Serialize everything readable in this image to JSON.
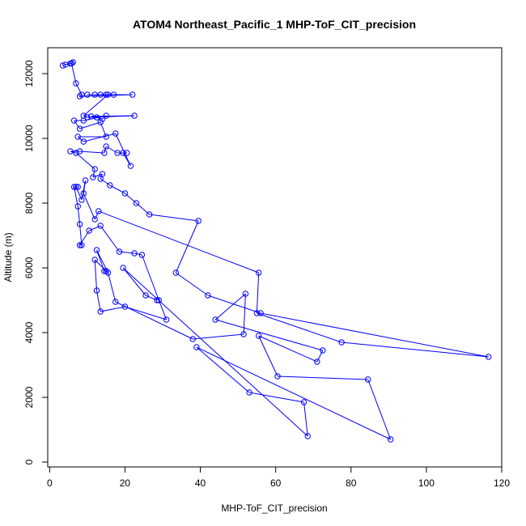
{
  "chart_data": {
    "type": "scatter",
    "title": "ATOM4 Northeast_Pacific_1 MHP-ToF_CIT_precision",
    "xlabel": "MHP-ToF_CIT_precision",
    "ylabel": "Altitude (m)",
    "xlim": [
      -0.5,
      120
    ],
    "ylim": [
      -150,
      12800
    ],
    "x_ticks": [
      0,
      20,
      40,
      60,
      80,
      100,
      120
    ],
    "y_ticks": [
      0,
      2000,
      4000,
      6000,
      8000,
      10000,
      12000
    ],
    "color": "#0000ff",
    "connected": true,
    "series": [
      {
        "points": [
          [
            3.5,
            12250
          ],
          [
            4.2,
            12280
          ],
          [
            5.5,
            12310
          ],
          [
            6.2,
            12350
          ],
          [
            5.8,
            12320
          ],
          [
            7.0,
            11700
          ],
          [
            8.5,
            11350
          ],
          [
            8.0,
            11300
          ],
          [
            22.0,
            11350
          ],
          [
            10.0,
            11350
          ],
          [
            12.0,
            11350
          ],
          [
            15.0,
            11350
          ],
          [
            17.0,
            11350
          ],
          [
            13.5,
            11350
          ],
          [
            15.5,
            11350
          ],
          [
            9.0,
            10700
          ],
          [
            10.0,
            10650
          ],
          [
            22.5,
            10700
          ],
          [
            11.0,
            10680
          ],
          [
            12.5,
            10650
          ],
          [
            14.0,
            10600
          ],
          [
            15.0,
            10700
          ],
          [
            9.0,
            10550
          ],
          [
            6.5,
            10550
          ],
          [
            8.0,
            10300
          ],
          [
            13.5,
            10500
          ],
          [
            15.0,
            10050
          ],
          [
            7.5,
            10050
          ],
          [
            9.0,
            9900
          ],
          [
            17.5,
            10150
          ],
          [
            21.5,
            9150
          ],
          [
            19.5,
            9550
          ],
          [
            20.5,
            9550
          ],
          [
            18.0,
            9550
          ],
          [
            15.0,
            9750
          ],
          [
            14.5,
            9550
          ],
          [
            8.0,
            9600
          ],
          [
            5.5,
            9600
          ],
          [
            7.0,
            9550
          ],
          [
            12.0,
            9050
          ],
          [
            11.5,
            8800
          ],
          [
            14.0,
            8900
          ],
          [
            13.5,
            8750
          ],
          [
            16.0,
            8550
          ],
          [
            20.0,
            8300
          ],
          [
            23.0,
            8000
          ],
          [
            26.5,
            7650
          ],
          [
            39.5,
            7450
          ],
          [
            33.5,
            5850
          ],
          [
            42.0,
            5150
          ],
          [
            56.0,
            4600
          ],
          [
            116.5,
            3250
          ],
          [
            77.5,
            3700
          ],
          [
            55.0,
            4600
          ],
          [
            55.5,
            5850
          ],
          [
            13.0,
            7750
          ],
          [
            12.0,
            7500
          ],
          [
            9.0,
            8300
          ],
          [
            9.5,
            8700
          ],
          [
            8.5,
            8100
          ],
          [
            7.0,
            8500
          ],
          [
            7.5,
            8500
          ],
          [
            6.5,
            8500
          ],
          [
            7.5,
            7900
          ],
          [
            8.0,
            7350
          ],
          [
            8.5,
            6700
          ],
          [
            8.0,
            6700
          ],
          [
            10.5,
            7150
          ],
          [
            13.5,
            7300
          ],
          [
            18.5,
            6500
          ],
          [
            22.5,
            6450
          ],
          [
            24.5,
            6400
          ],
          [
            29.0,
            5000
          ],
          [
            31.0,
            4400
          ],
          [
            20.0,
            4800
          ],
          [
            13.5,
            4650
          ],
          [
            12.5,
            5300
          ],
          [
            12.0,
            6250
          ],
          [
            15.0,
            5900
          ],
          [
            14.5,
            5900
          ],
          [
            12.5,
            6550
          ],
          [
            15.5,
            5850
          ],
          [
            17.5,
            4950
          ],
          [
            38.0,
            3800
          ],
          [
            51.5,
            3950
          ],
          [
            52.0,
            5200
          ],
          [
            44.0,
            4400
          ],
          [
            72.5,
            3450
          ],
          [
            71.0,
            3100
          ],
          [
            55.5,
            3900
          ],
          [
            60.5,
            2650
          ],
          [
            84.5,
            2550
          ],
          [
            90.5,
            700
          ],
          [
            39.0,
            3550
          ],
          [
            53.0,
            2150
          ],
          [
            67.5,
            1850
          ],
          [
            68.5,
            800
          ],
          [
            19.5,
            6000
          ],
          [
            25.5,
            5150
          ],
          [
            28.5,
            5000
          ]
        ]
      }
    ]
  }
}
